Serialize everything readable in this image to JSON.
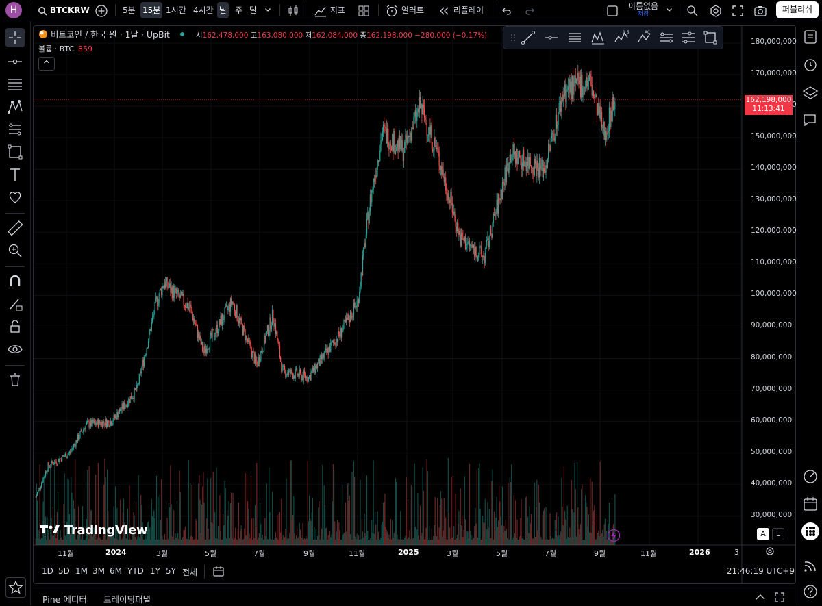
{
  "topbar": {
    "avatar_letter": "H",
    "symbol": "BTCKRW",
    "intervals": [
      "5분",
      "15분",
      "1시간",
      "4시간",
      "날",
      "주",
      "달"
    ],
    "selected_interval": "날",
    "indicators_label": "지표",
    "alert_label": "얼러트",
    "replay_label": "리플레이",
    "layout_name": "이름없음",
    "layout_status": "저장",
    "publish_label": "퍼블리쉬"
  },
  "legend": {
    "title": "비트코인 / 한국 원 · 1날 · UpBit",
    "o_label": "시",
    "o_value": "162,478,000",
    "h_label": "고",
    "h_value": "163,080,000",
    "l_label": "저",
    "l_value": "162,084,000",
    "c_label": "종",
    "c_value": "162,198,000",
    "change": "−280,000 (−0.17%)",
    "volume_label": "볼륨 · BTC",
    "volume_value": "859"
  },
  "price_axis": {
    "labels": [
      "180,000,000",
      "170,000,000",
      "160,000,000",
      "150,000,000",
      "140,000,000",
      "130,000,000",
      "120,000,000",
      "110,000,000",
      "100,000,000",
      "90,000,000",
      "80,000,000",
      "70,000,000",
      "60,000,000",
      "50,000,000",
      "40,000,000",
      "30,000,000"
    ],
    "last_price": "162,198,000",
    "countdown": "11:13:41"
  },
  "time_axis": {
    "labels": [
      "11월",
      "2024",
      "3월",
      "5월",
      "7월",
      "9월",
      "11월",
      "2025",
      "3월",
      "5월",
      "7월",
      "9월",
      "11월",
      "2026",
      "3"
    ]
  },
  "chart_data": {
    "type": "candlestick",
    "title": "비트코인 / 한국 원 · 1날 · UpBit",
    "ylim": [
      28000000,
      184000000
    ],
    "x_range": [
      "2023-10",
      "2026-03"
    ],
    "approx_closes": [
      {
        "date": "2023-10-10",
        "close": 36000000
      },
      {
        "date": "2023-10-25",
        "close": 46000000
      },
      {
        "date": "2023-11-20",
        "close": 50000000
      },
      {
        "date": "2023-12-10",
        "close": 59000000
      },
      {
        "date": "2024-01-10",
        "close": 60000000
      },
      {
        "date": "2024-02-10",
        "close": 70000000
      },
      {
        "date": "2024-03-05",
        "close": 98000000
      },
      {
        "date": "2024-03-14",
        "close": 104000000
      },
      {
        "date": "2024-04-15",
        "close": 96000000
      },
      {
        "date": "2024-05-01",
        "close": 82000000
      },
      {
        "date": "2024-06-05",
        "close": 98000000
      },
      {
        "date": "2024-07-05",
        "close": 78000000
      },
      {
        "date": "2024-07-25",
        "close": 94000000
      },
      {
        "date": "2024-08-05",
        "close": 76000000
      },
      {
        "date": "2024-09-06",
        "close": 74000000
      },
      {
        "date": "2024-10-15",
        "close": 88000000
      },
      {
        "date": "2024-11-05",
        "close": 98000000
      },
      {
        "date": "2024-11-20",
        "close": 130000000
      },
      {
        "date": "2024-12-05",
        "close": 152000000
      },
      {
        "date": "2024-12-31",
        "close": 146000000
      },
      {
        "date": "2025-01-20",
        "close": 160000000
      },
      {
        "date": "2025-02-10",
        "close": 145000000
      },
      {
        "date": "2025-03-10",
        "close": 118000000
      },
      {
        "date": "2025-04-08",
        "close": 112000000
      },
      {
        "date": "2025-05-10",
        "close": 145000000
      },
      {
        "date": "2025-06-20",
        "close": 140000000
      },
      {
        "date": "2025-07-14",
        "close": 165000000
      },
      {
        "date": "2025-08-14",
        "close": 168000000
      },
      {
        "date": "2025-09-01",
        "close": 151000000
      },
      {
        "date": "2025-09-14",
        "close": 162198000
      }
    ]
  },
  "watermark": "TradingView",
  "scale_buttons": {
    "auto": "A",
    "log": "L"
  },
  "range_buttons": [
    "1D",
    "5D",
    "1M",
    "3M",
    "6M",
    "YTD",
    "1Y",
    "5Y",
    "전체"
  ],
  "clock": "21:46:19 UTC+9",
  "footer": {
    "tab1": "Pine 에디터",
    "tab2": "트레이딩패널"
  },
  "colors": {
    "up": "#26a69a",
    "down": "#ef5350",
    "last_price": "#f23645",
    "accent": "#2962ff"
  }
}
